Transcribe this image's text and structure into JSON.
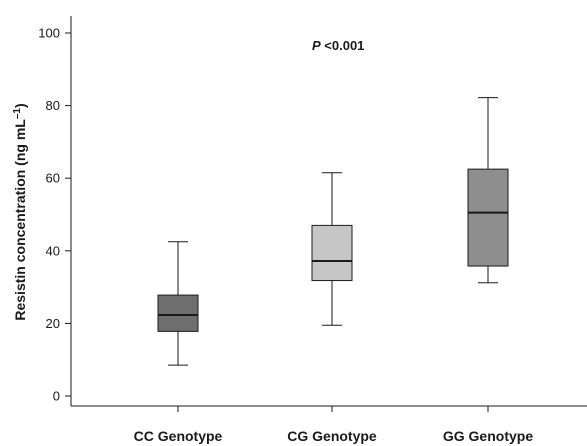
{
  "chart_data": {
    "type": "box",
    "categories": [
      "CC Genotype",
      "CG Genotype",
      "GG Genotype"
    ],
    "boxes": [
      {
        "category": "CC Genotype",
        "whisker_low": 8.5,
        "q1": 17.8,
        "median": 22.3,
        "q3": 27.8,
        "whisker_high": 42.5,
        "color": "#6e6e6e"
      },
      {
        "category": "CG Genotype",
        "whisker_low": 19.5,
        "q1": 31.8,
        "median": 37.2,
        "q3": 47.0,
        "whisker_high": 61.5,
        "color": "#c6c6c6"
      },
      {
        "category": "GG Genotype",
        "whisker_low": 31.2,
        "q1": 35.8,
        "median": 50.5,
        "q3": 62.5,
        "whisker_high": 82.2,
        "color": "#8e8e8e"
      }
    ],
    "ylabel_main": "Resistin concentration (ng mL",
    "ylabel_sup": "–1",
    "ylabel_close": ")",
    "annotation_p": "P",
    "annotation_rest": " <0.001",
    "ylim": [
      -3,
      105
    ],
    "yticks": [
      0,
      20,
      40,
      60,
      80,
      100
    ],
    "grid": false
  }
}
